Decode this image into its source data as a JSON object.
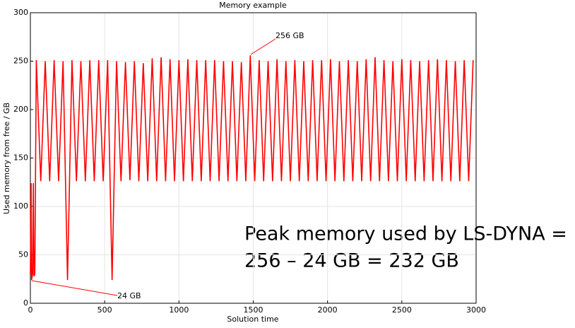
{
  "chart_data": {
    "type": "line",
    "title": "Memory example",
    "x_label": "Solution time",
    "y_label": "Used memory from free / GB",
    "x": [
      0,
      5,
      8,
      15,
      20,
      24,
      30,
      40,
      70,
      100,
      130,
      160,
      190,
      220,
      250,
      280,
      310,
      340,
      370,
      400,
      430,
      460,
      490,
      520,
      550,
      580,
      610,
      640,
      670,
      700,
      730,
      760,
      790,
      820,
      850,
      880,
      910,
      940,
      970,
      1000,
      1030,
      1060,
      1090,
      1120,
      1150,
      1180,
      1210,
      1240,
      1270,
      1300,
      1330,
      1360,
      1390,
      1420,
      1450,
      1480,
      1510,
      1540,
      1570,
      1600,
      1630,
      1660,
      1690,
      1720,
      1750,
      1780,
      1810,
      1840,
      1870,
      1900,
      1930,
      1960,
      1990,
      2020,
      2050,
      2080,
      2110,
      2140,
      2170,
      2200,
      2230,
      2260,
      2290,
      2320,
      2350,
      2380,
      2410,
      2440,
      2470,
      2500,
      2530,
      2560,
      2590,
      2620,
      2650,
      2680,
      2710,
      2740,
      2770,
      2800,
      2830,
      2860,
      2890,
      2920,
      2950,
      2980
    ],
    "values": [
      30,
      124,
      24,
      30,
      124,
      28,
      30,
      251,
      126,
      250,
      126,
      251,
      126,
      250,
      24,
      251,
      126,
      250,
      126,
      251,
      126,
      251,
      126,
      251,
      24,
      250,
      126,
      249,
      127,
      250,
      126,
      248,
      126,
      253,
      126,
      254,
      126,
      252,
      126,
      251,
      126,
      252,
      126,
      251,
      126,
      251,
      126,
      251,
      126,
      250,
      126,
      250,
      126,
      249,
      126,
      256,
      126,
      251,
      126,
      250,
      126,
      252,
      126,
      250,
      126,
      251,
      126,
      250,
      126,
      251,
      126,
      251,
      126,
      252,
      126,
      250,
      126,
      251,
      126,
      250,
      126,
      252,
      126,
      254,
      126,
      251,
      126,
      250,
      126,
      252,
      126,
      251,
      126,
      250,
      126,
      251,
      126,
      252,
      126,
      251,
      126,
      250,
      126,
      251,
      126,
      251
    ],
    "color": "#ff0000",
    "xlim": [
      0,
      3000
    ],
    "xticks": [
      0,
      500,
      1000,
      1500,
      2000,
      2500,
      3000
    ],
    "ylim": [
      0,
      300
    ],
    "yticks": [
      0,
      50,
      100,
      150,
      200,
      250,
      300
    ],
    "grid": true,
    "annotations": [
      "256 GB",
      "24 GB"
    ],
    "callout": [
      "Peak memory used by LS-DYNA =",
      "256 – 24 GB = 232 GB"
    ]
  }
}
